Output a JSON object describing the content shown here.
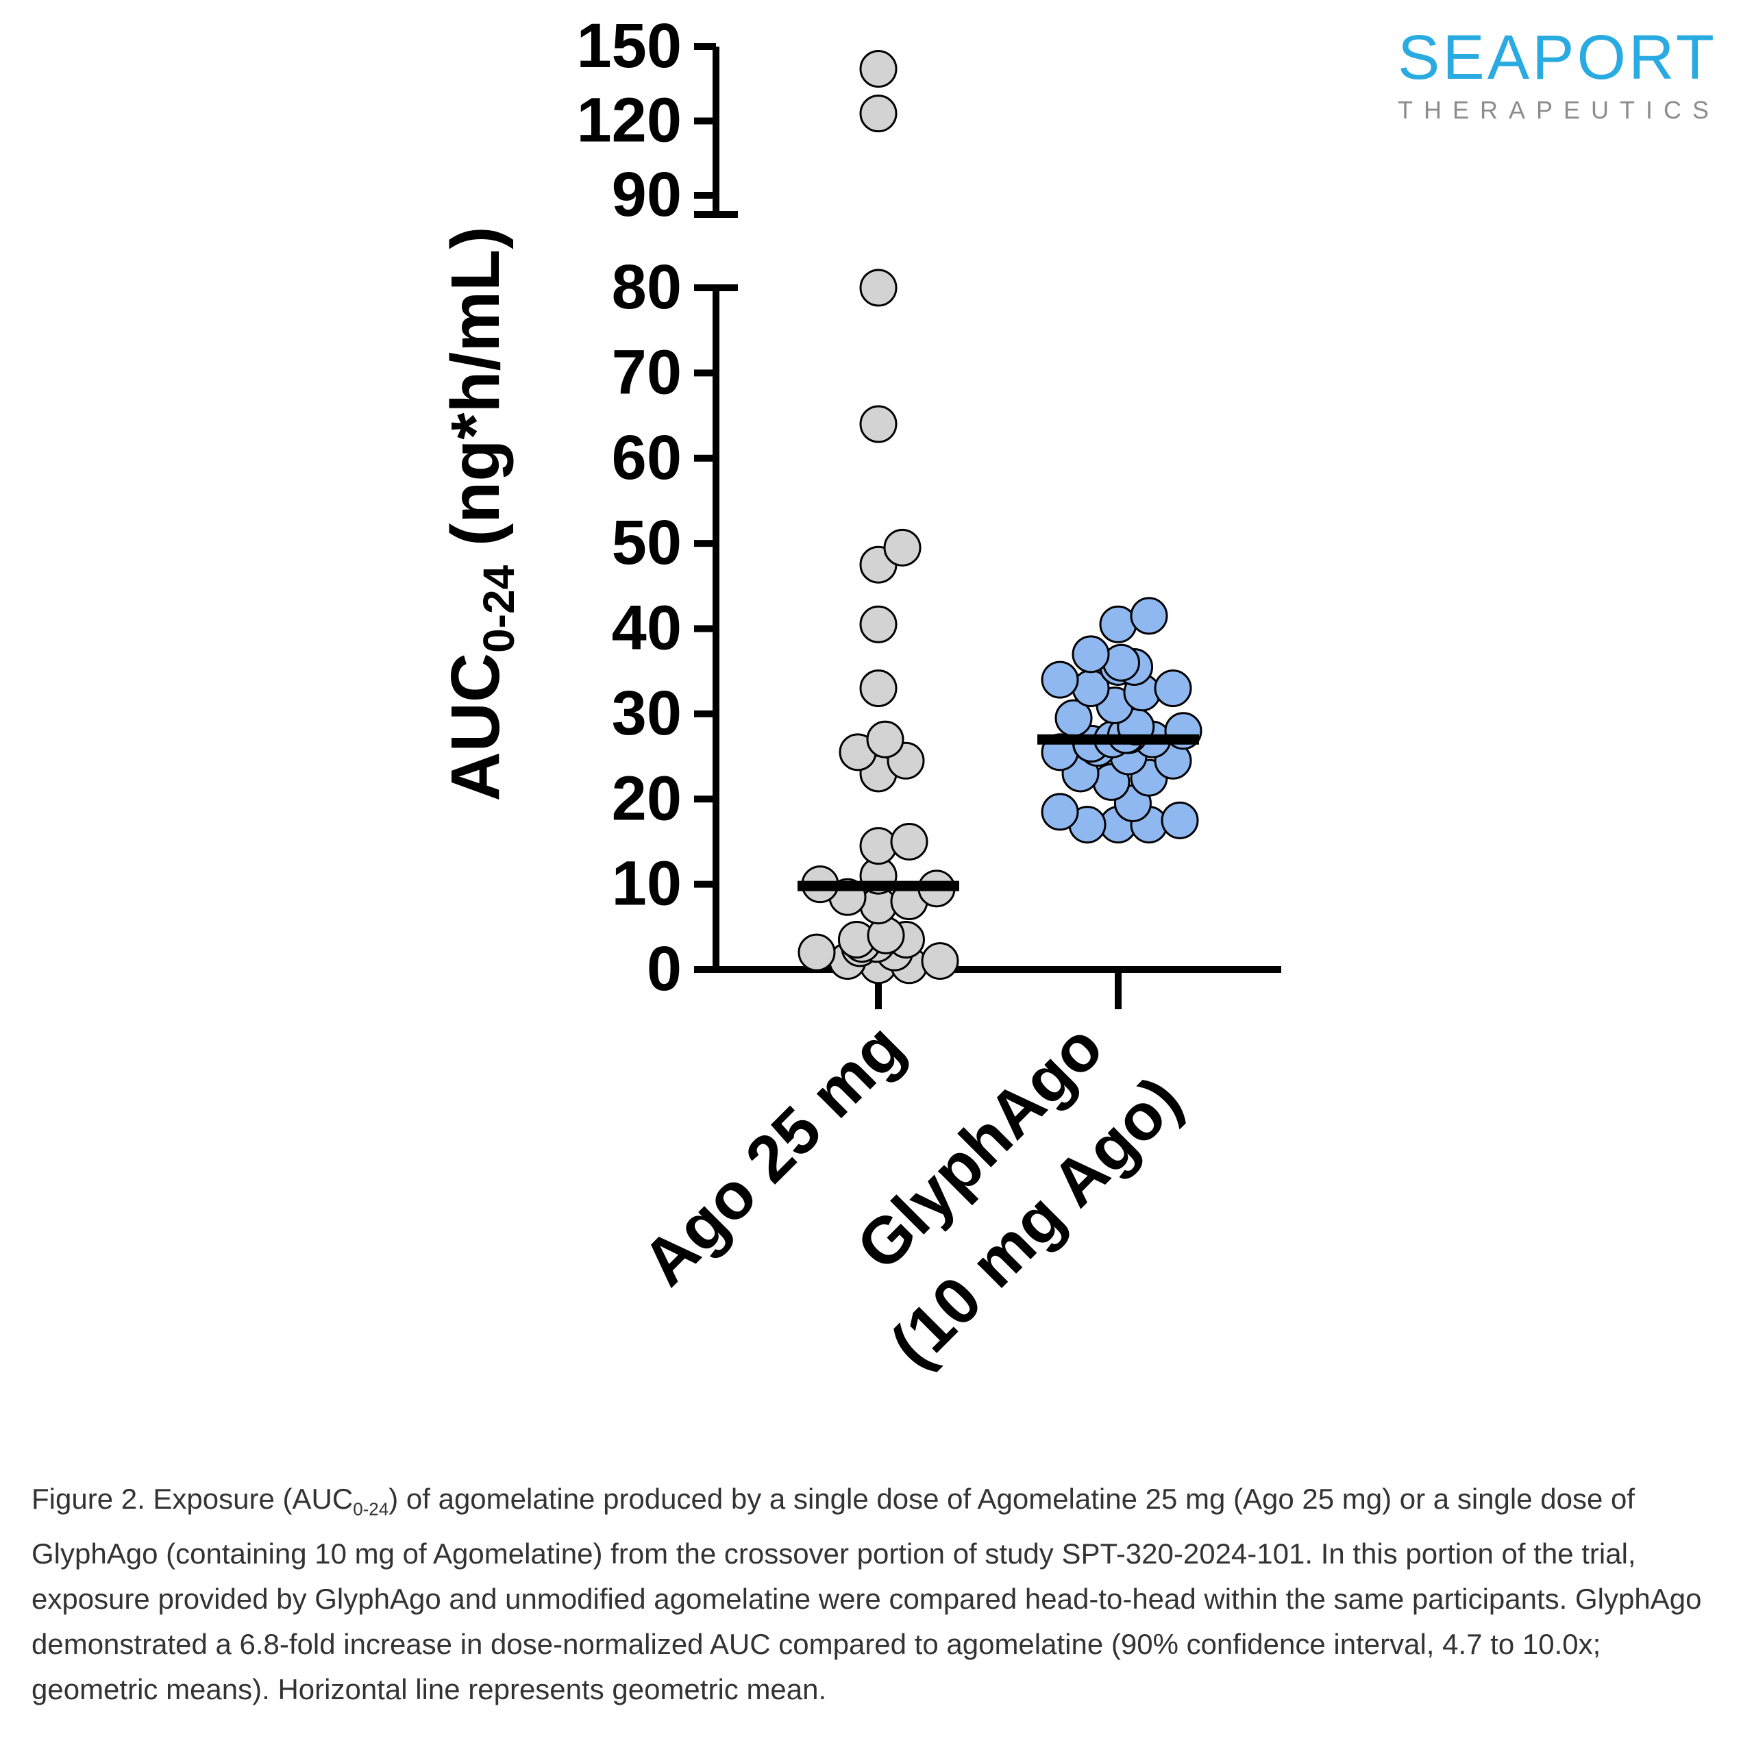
{
  "logo": {
    "name": "SEAPORT",
    "tagline": "THERAPEUTICS"
  },
  "caption": {
    "prefix": "Figure 2. Exposure (AUC",
    "sub": "0-24",
    "text": ") of agomelatine produced by a single dose of Agomelatine 25 mg (Ago 25 mg) or a single dose of GlyphAgo (containing 10 mg of Agomelatine) from the crossover portion of study SPT-320-2024-101. In this portion of the trial, exposure provided by GlyphAgo and unmodified agomelatine were compared head-to-head within the same participants. GlyphAgo demonstrated a 6.8-fold increase in dose-normalized AUC compared to agomelatine (90% confidence interval, 4.7 to 10.0x; geometric means). Horizontal line represents geometric mean."
  },
  "chart_data": {
    "type": "scatter",
    "ylabel_main": "AUC",
    "ylabel_sub": "0-24",
    "ylabel_unit": " (ng*h/mL)",
    "y_axis_break": [
      80,
      90
    ],
    "yticks_lower": [
      0,
      10,
      20,
      30,
      40,
      50,
      60,
      70,
      80
    ],
    "yticks_upper": [
      90,
      120,
      150
    ],
    "categories": [
      "Ago 25 mg",
      "GlyphAgo",
      "(10 mg Ago)"
    ],
    "colors": {
      "Ago 25 mg": "#d3d3d3",
      "GlyphAgo": "#8fb8f0"
    },
    "geometric_mean": {
      "Ago 25 mg": 9.8,
      "GlyphAgo": 27.0
    },
    "series": [
      {
        "group": "Ago 25 mg",
        "values": [
          141,
          123,
          80,
          64,
          49.5,
          47.5,
          40.5,
          33,
          27,
          25.5,
          24.5,
          23,
          15,
          14.5,
          11,
          10,
          9.5,
          8.5,
          8,
          7.5,
          4,
          3.5,
          3.5,
          3,
          3,
          2.5,
          2,
          2,
          1,
          1,
          0.5,
          0.5
        ]
      },
      {
        "group": "GlyphAgo",
        "values": [
          41.5,
          40.5,
          37,
          36,
          35.5,
          35.5,
          34,
          33,
          33,
          32.5,
          31,
          29.5,
          28.5,
          28,
          27.5,
          27.5,
          27,
          27,
          26.5,
          26.5,
          26,
          25.5,
          25,
          24.5,
          23,
          22.5,
          22,
          19.5,
          18.5,
          17.5,
          17,
          17,
          17
        ]
      }
    ]
  }
}
